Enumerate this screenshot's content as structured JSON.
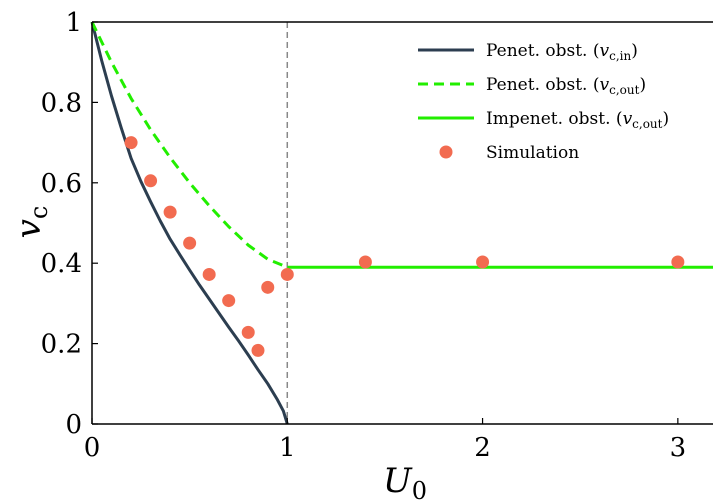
{
  "chart_data": {
    "type": "line",
    "title": "",
    "xlabel": "U",
    "xlabel_sub": "0",
    "ylabel": "v",
    "ylabel_sub": "c",
    "xlim": [
      0,
      3.18
    ],
    "ylim": [
      0,
      1
    ],
    "xticks": [
      0,
      1,
      2,
      3
    ],
    "yticks": [
      0,
      0.2,
      0.4,
      0.6,
      0.8,
      1
    ],
    "xtick_labels": [
      "0",
      "1",
      "2",
      "3"
    ],
    "ytick_labels": [
      "0",
      "0.2",
      "0.4",
      "0.6",
      "0.8",
      "1"
    ],
    "grid": false,
    "legend_position": "top-right",
    "vline": {
      "x": 1,
      "style": "dashed",
      "color": "#888888"
    },
    "series": [
      {
        "name": "Penet. obst.",
        "math_base": "v",
        "math_sub": "c,in",
        "style": "solid",
        "color": "#2c3e50",
        "x": [
          0,
          0.05,
          0.1,
          0.15,
          0.2,
          0.25,
          0.3,
          0.35,
          0.4,
          0.45,
          0.5,
          0.55,
          0.6,
          0.65,
          0.7,
          0.75,
          0.8,
          0.85,
          0.9,
          0.95,
          0.98,
          1.0
        ],
        "y": [
          1.0,
          0.903,
          0.816,
          0.736,
          0.661,
          0.604,
          0.553,
          0.505,
          0.46,
          0.421,
          0.383,
          0.346,
          0.311,
          0.276,
          0.241,
          0.207,
          0.172,
          0.135,
          0.1,
          0.06,
          0.032,
          0.0
        ]
      },
      {
        "name": "Penet. obst.",
        "math_base": "v",
        "math_sub": "c,out",
        "style": "dashed",
        "color": "#22ee00",
        "x": [
          0,
          0.1,
          0.2,
          0.3,
          0.4,
          0.5,
          0.6,
          0.7,
          0.8,
          0.9,
          1.0
        ],
        "y": [
          1.0,
          0.9,
          0.81,
          0.732,
          0.663,
          0.6,
          0.543,
          0.491,
          0.445,
          0.41,
          0.39
        ]
      },
      {
        "name": "Impenet. obst.",
        "math_base": "v",
        "math_sub": "c,out",
        "style": "solid",
        "color": "#22ee00",
        "x": [
          1.0,
          3.18
        ],
        "y": [
          0.39,
          0.39
        ]
      },
      {
        "name": "Simulation",
        "style": "markers",
        "color": "#f26b50",
        "x": [
          0.2,
          0.3,
          0.4,
          0.5,
          0.6,
          0.7,
          0.8,
          0.85,
          0.9,
          1.0,
          1.4,
          2.0,
          3.0
        ],
        "y": [
          0.7,
          0.605,
          0.527,
          0.45,
          0.372,
          0.307,
          0.228,
          0.183,
          0.34,
          0.372,
          0.403,
          0.403,
          0.403
        ]
      }
    ]
  }
}
